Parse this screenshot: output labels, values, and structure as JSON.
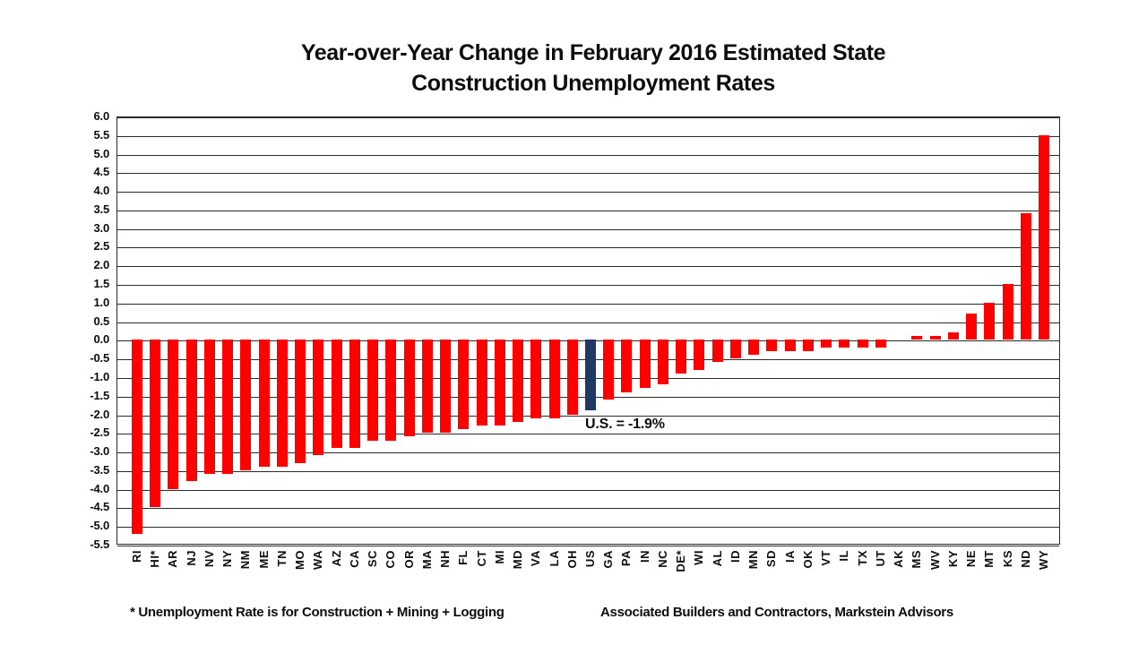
{
  "title": {
    "line1": "Year-over-Year Change in February 2016 Estimated State",
    "line2": "Construction Unemployment Rates"
  },
  "footer": {
    "note": "* Unemployment Rate is for Construction + Mining + Logging",
    "source": "Associated Builders and Contractors, Markstein Advisors"
  },
  "colors": {
    "bar": "#ff0000",
    "us_bar": "#1f3864",
    "grid": "#2b2b2b",
    "text": "#0d0d0d",
    "background": "#ffffff"
  },
  "chart_data": {
    "type": "bar",
    "title": "Year-over-Year Change in February 2016 Estimated State Construction Unemployment Rates",
    "categories": [
      "RI",
      "HI*",
      "AR",
      "NJ",
      "NV",
      "NY",
      "NM",
      "ME",
      "TN",
      "MO",
      "WA",
      "AZ",
      "CA",
      "SC",
      "CO",
      "OR",
      "MA",
      "NH",
      "FL",
      "CT",
      "MI",
      "MD",
      "VA",
      "LA",
      "OH",
      "US",
      "GA",
      "PA",
      "IN",
      "NC",
      "DE*",
      "WI",
      "AL",
      "ID",
      "MN",
      "SD",
      "IA",
      "OK",
      "VT",
      "IL",
      "TX",
      "UT",
      "AK",
      "MS",
      "WV",
      "KY",
      "NE",
      "MT",
      "KS",
      "ND",
      "WY"
    ],
    "values": [
      -5.2,
      -4.5,
      -4.0,
      -3.8,
      -3.6,
      -3.6,
      -3.5,
      -3.4,
      -3.4,
      -3.3,
      -3.1,
      -2.9,
      -2.9,
      -2.7,
      -2.7,
      -2.6,
      -2.5,
      -2.5,
      -2.4,
      -2.3,
      -2.3,
      -2.2,
      -2.1,
      -2.1,
      -2.0,
      -1.9,
      -1.6,
      -1.4,
      -1.3,
      -1.2,
      -0.9,
      -0.8,
      -0.6,
      -0.5,
      -0.4,
      -0.3,
      -0.3,
      -0.3,
      -0.2,
      -0.2,
      -0.2,
      -0.2,
      0.0,
      0.1,
      0.1,
      0.2,
      0.7,
      1.0,
      1.5,
      3.4,
      5.5
    ],
    "highlight_category": "US",
    "annotation": {
      "text": "U.S. = -1.9%",
      "attached_to": "US"
    },
    "xlabel": "",
    "ylabel": "",
    "ylim": [
      -5.5,
      6.0
    ],
    "ytick_step": 0.5,
    "grid": true,
    "legend": "none"
  }
}
